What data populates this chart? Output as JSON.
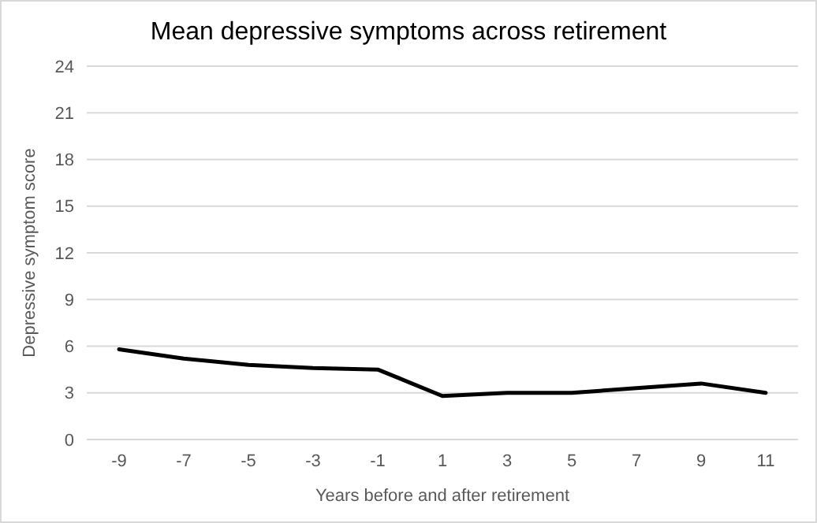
{
  "chart_data": {
    "type": "line",
    "title": "Mean depressive symptoms across retirement",
    "xlabel": "Years before and after retirement",
    "ylabel": "Depressive symptom score",
    "categories": [
      "-9",
      "-7",
      "-5",
      "-3",
      "-1",
      "1",
      "3",
      "5",
      "7",
      "9",
      "11"
    ],
    "series": [
      {
        "color": "#000000",
        "values": [
          5.8,
          5.2,
          4.8,
          4.6,
          4.5,
          2.8,
          3.0,
          3.0,
          3.3,
          3.6,
          3.0
        ]
      }
    ],
    "ylim": [
      0,
      24
    ],
    "yticks": [
      0,
      3,
      6,
      9,
      12,
      15,
      18,
      21,
      24
    ],
    "grid": "y",
    "marker": "none",
    "line_style": "solid"
  }
}
